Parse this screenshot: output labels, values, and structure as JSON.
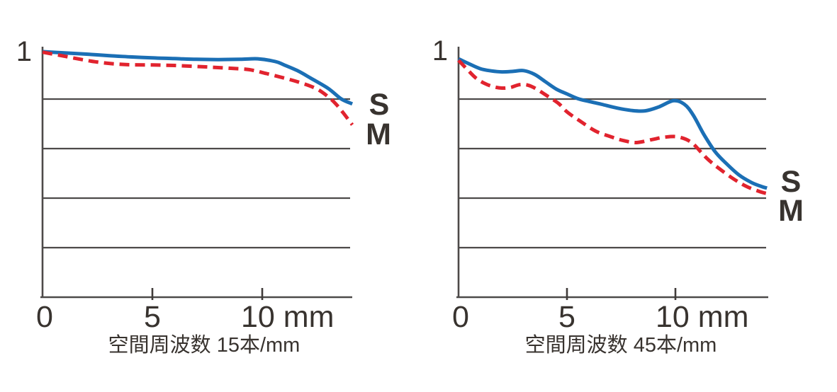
{
  "figure": {
    "description": "MTF characteristic charts, sagittal vs meridional response",
    "colors": {
      "sagittal_blue": "#1b6fb5",
      "meridional_red": "#e1232e",
      "axis_gray": "#4d4a49",
      "text_dark": "#38332f"
    }
  },
  "chart_data": [
    {
      "type": "line",
      "title": "空間周波数 15本/mm",
      "x_unit": "mm",
      "xlim": [
        0,
        14.1
      ],
      "ylim": [
        0,
        1
      ],
      "x_ticks": [
        0,
        5,
        10
      ],
      "x_tick_labels": [
        "0",
        "5",
        "10 mm"
      ],
      "y_top_label": "1",
      "gridlines_y": [
        0.2,
        0.4,
        0.6,
        0.8
      ],
      "grid": "horizontal-only",
      "legend_position": "right-of-curves",
      "series": [
        {
          "name": "S",
          "label": "S",
          "color": "#1b6fb5",
          "style": "solid",
          "points": [
            [
              0,
              0.997
            ],
            [
              1,
              0.992
            ],
            [
              2,
              0.987
            ],
            [
              3,
              0.981
            ],
            [
              4,
              0.976
            ],
            [
              5,
              0.972
            ],
            [
              6,
              0.969
            ],
            [
              7,
              0.966
            ],
            [
              8,
              0.965
            ],
            [
              9,
              0.966
            ],
            [
              9.8,
              0.968
            ],
            [
              10.6,
              0.957
            ],
            [
              11,
              0.943
            ],
            [
              11.6,
              0.92
            ],
            [
              12.2,
              0.89
            ],
            [
              13,
              0.848
            ],
            [
              13.6,
              0.805
            ],
            [
              14.1,
              0.785
            ]
          ]
        },
        {
          "name": "M",
          "label": "M",
          "color": "#e1232e",
          "style": "dashed",
          "points": [
            [
              0,
              0.995
            ],
            [
              0.8,
              0.982
            ],
            [
              1.6,
              0.968
            ],
            [
              2.4,
              0.956
            ],
            [
              3.2,
              0.948
            ],
            [
              4,
              0.944
            ],
            [
              5,
              0.943
            ],
            [
              6,
              0.941
            ],
            [
              7,
              0.937
            ],
            [
              7.7,
              0.934
            ],
            [
              8.5,
              0.93
            ],
            [
              9.4,
              0.924
            ],
            [
              10.2,
              0.908
            ],
            [
              11,
              0.89
            ],
            [
              11.6,
              0.875
            ],
            [
              12.2,
              0.857
            ],
            [
              12.6,
              0.84
            ],
            [
              13,
              0.814
            ],
            [
              13.35,
              0.785
            ],
            [
              13.7,
              0.747
            ],
            [
              14.1,
              0.7
            ]
          ]
        }
      ]
    },
    {
      "type": "line",
      "title": "空間周波数 45本/mm",
      "x_unit": "mm",
      "xlim": [
        0,
        14.2
      ],
      "ylim": [
        0,
        1
      ],
      "x_ticks": [
        0,
        5,
        10
      ],
      "x_tick_labels": [
        "0",
        "5",
        "10 mm"
      ],
      "y_top_label": "1",
      "gridlines_y": [
        0.2,
        0.4,
        0.6,
        0.8
      ],
      "grid": "horizontal-only",
      "legend_position": "right-of-curves",
      "series": [
        {
          "name": "S",
          "label": "S",
          "color": "#1b6fb5",
          "style": "solid",
          "points": [
            [
              0,
              0.968
            ],
            [
              0.5,
              0.947
            ],
            [
              1,
              0.928
            ],
            [
              1.5,
              0.919
            ],
            [
              2,
              0.915
            ],
            [
              2.5,
              0.917
            ],
            [
              3,
              0.92
            ],
            [
              3.5,
              0.905
            ],
            [
              4,
              0.875
            ],
            [
              4.5,
              0.845
            ],
            [
              5,
              0.825
            ],
            [
              5.5,
              0.806
            ],
            [
              6,
              0.795
            ],
            [
              6.6,
              0.783
            ],
            [
              7.3,
              0.768
            ],
            [
              8,
              0.758
            ],
            [
              8.6,
              0.757
            ],
            [
              9.2,
              0.772
            ],
            [
              9.9,
              0.798
            ],
            [
              10.4,
              0.783
            ],
            [
              10.8,
              0.74
            ],
            [
              11.3,
              0.66
            ],
            [
              11.8,
              0.592
            ],
            [
              12.3,
              0.545
            ],
            [
              12.9,
              0.497
            ],
            [
              13.5,
              0.465
            ],
            [
              14,
              0.448
            ],
            [
              14.2,
              0.443
            ]
          ]
        },
        {
          "name": "M",
          "label": "M",
          "color": "#e1232e",
          "style": "dashed",
          "points": [
            [
              0,
              0.962
            ],
            [
              0.4,
              0.925
            ],
            [
              0.8,
              0.89
            ],
            [
              1.2,
              0.868
            ],
            [
              1.6,
              0.855
            ],
            [
              2,
              0.849
            ],
            [
              2.4,
              0.852
            ],
            [
              2.8,
              0.863
            ],
            [
              3.2,
              0.861
            ],
            [
              3.6,
              0.845
            ],
            [
              4,
              0.822
            ],
            [
              4.6,
              0.787
            ],
            [
              5,
              0.752
            ],
            [
              5.6,
              0.715
            ],
            [
              6.3,
              0.675
            ],
            [
              7,
              0.652
            ],
            [
              7.6,
              0.636
            ],
            [
              8.2,
              0.628
            ],
            [
              8.9,
              0.64
            ],
            [
              9.5,
              0.65
            ],
            [
              10.1,
              0.651
            ],
            [
              10.7,
              0.63
            ],
            [
              11.2,
              0.585
            ],
            [
              11.5,
              0.558
            ],
            [
              12,
              0.522
            ],
            [
              12.7,
              0.478
            ],
            [
              13.3,
              0.448
            ],
            [
              13.9,
              0.428
            ],
            [
              14.2,
              0.421
            ]
          ]
        }
      ]
    }
  ]
}
